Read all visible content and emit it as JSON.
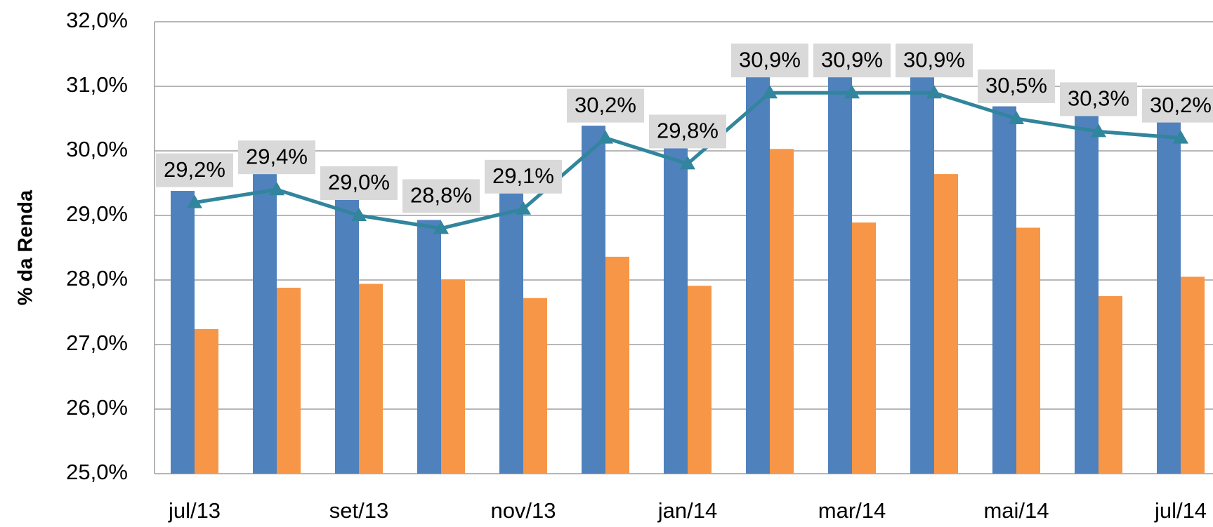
{
  "chart_data": {
    "type": "bar-line",
    "y_label": "% da Renda",
    "categories": [
      "jul/13",
      null,
      "set/13",
      null,
      "nov/13",
      null,
      "jan/14",
      null,
      "mar/14",
      null,
      "mai/14",
      null,
      "jul/14"
    ],
    "ylim": [
      25,
      32
    ],
    "yticks": [
      {
        "value": 25,
        "label": "25,0%"
      },
      {
        "value": 26,
        "label": "26,0%"
      },
      {
        "value": 27,
        "label": "27,0%"
      },
      {
        "value": 28,
        "label": "28,0%"
      },
      {
        "value": 29,
        "label": "29,0%"
      },
      {
        "value": 30,
        "label": "30,0%"
      },
      {
        "value": 31,
        "label": "31,0%"
      },
      {
        "value": 32,
        "label": "32,0%"
      }
    ],
    "grid": true,
    "series": [
      {
        "type": "bar",
        "color": "#4f81bd",
        "values": [
          29.38,
          29.67,
          29.25,
          28.93,
          29.35,
          30.39,
          30.04,
          31.16,
          31.16,
          31.14,
          30.69,
          30.57,
          30.48
        ]
      },
      {
        "type": "bar",
        "color": "#f79646",
        "values": [
          27.24,
          27.88,
          27.94,
          28.01,
          27.72,
          28.36,
          27.91,
          30.03,
          28.89,
          29.64,
          28.81,
          27.75,
          28.05
        ]
      },
      {
        "type": "line",
        "color": "#31859c",
        "values": [
          29.2,
          29.4,
          29.0,
          28.8,
          29.1,
          30.2,
          29.8,
          30.9,
          30.9,
          30.9,
          30.5,
          30.3,
          30.2
        ],
        "value_labels": [
          "29,2%",
          "29,4%",
          "29,0%",
          "28,8%",
          "29,1%",
          "30,2%",
          "29,8%",
          "30,9%",
          "30,9%",
          "30,9%",
          "30,5%",
          "30,3%",
          "30,2%"
        ]
      }
    ]
  }
}
